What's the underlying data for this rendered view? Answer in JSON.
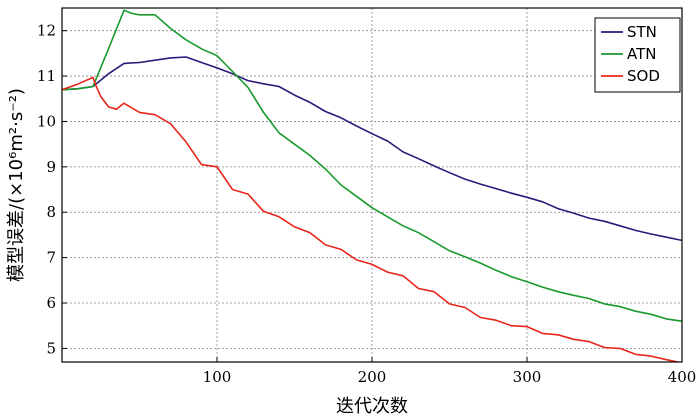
{
  "chart_data": {
    "type": "line",
    "xlabel": "迭代次数",
    "ylabel": "模型误差/(×10⁶m²·s⁻²)",
    "xlim": [
      0,
      400
    ],
    "ylim": [
      4.7,
      12.5
    ],
    "xticks": [
      100,
      200,
      300,
      400
    ],
    "yticks": [
      5,
      6,
      7,
      8,
      9,
      10,
      11,
      12
    ],
    "grid": true,
    "legend_position": "top-right",
    "series": [
      {
        "name": "STN",
        "color": "#2c1a7a",
        "x": [
          0,
          10,
          20,
          30,
          40,
          50,
          60,
          70,
          80,
          90,
          100,
          110,
          120,
          130,
          140,
          150,
          160,
          170,
          180,
          190,
          200,
          210,
          220,
          230,
          240,
          250,
          260,
          270,
          280,
          290,
          300,
          310,
          320,
          330,
          340,
          350,
          360,
          370,
          380,
          390,
          400
        ],
        "y": [
          10.7,
          10.72,
          10.77,
          11.05,
          11.28,
          11.3,
          11.35,
          11.4,
          11.42,
          11.3,
          11.18,
          11.05,
          10.9,
          10.83,
          10.77,
          10.58,
          10.42,
          10.22,
          10.08,
          9.9,
          9.73,
          9.57,
          9.33,
          9.18,
          9.02,
          8.87,
          8.73,
          8.62,
          8.52,
          8.42,
          8.33,
          8.23,
          8.08,
          7.98,
          7.87,
          7.8,
          7.7,
          7.6,
          7.52,
          7.45,
          7.38
        ]
      },
      {
        "name": "ATN",
        "color": "#1a9a2e",
        "x": [
          0,
          10,
          20,
          30,
          40,
          45,
          50,
          60,
          70,
          80,
          90,
          100,
          110,
          120,
          130,
          140,
          150,
          160,
          170,
          180,
          190,
          200,
          210,
          220,
          230,
          240,
          250,
          260,
          270,
          280,
          290,
          300,
          310,
          320,
          330,
          340,
          350,
          360,
          370,
          380,
          390,
          400
        ],
        "y": [
          10.7,
          10.72,
          10.77,
          11.6,
          12.45,
          12.38,
          12.35,
          12.35,
          12.05,
          11.8,
          11.6,
          11.45,
          11.1,
          10.75,
          10.2,
          9.75,
          9.5,
          9.25,
          8.95,
          8.6,
          8.35,
          8.1,
          7.9,
          7.7,
          7.55,
          7.35,
          7.15,
          7.02,
          6.88,
          6.72,
          6.58,
          6.47,
          6.35,
          6.25,
          6.17,
          6.1,
          5.98,
          5.92,
          5.82,
          5.75,
          5.65,
          5.6
        ]
      },
      {
        "name": "SOD",
        "color": "#e8261a",
        "x": [
          0,
          10,
          20,
          22,
          25,
          30,
          35,
          40,
          45,
          50,
          60,
          70,
          80,
          90,
          100,
          110,
          120,
          130,
          140,
          150,
          160,
          170,
          180,
          190,
          200,
          210,
          220,
          230,
          240,
          250,
          260,
          270,
          280,
          290,
          300,
          310,
          320,
          330,
          340,
          350,
          360,
          370,
          380,
          390,
          400
        ],
        "y": [
          10.7,
          10.82,
          10.97,
          10.78,
          10.55,
          10.32,
          10.27,
          10.4,
          10.3,
          10.2,
          10.15,
          9.95,
          9.55,
          9.05,
          9.0,
          8.5,
          8.4,
          8.02,
          7.9,
          7.68,
          7.55,
          7.28,
          7.18,
          6.95,
          6.85,
          6.68,
          6.6,
          6.32,
          6.25,
          5.98,
          5.9,
          5.68,
          5.62,
          5.5,
          5.48,
          5.33,
          5.3,
          5.2,
          5.15,
          5.02,
          5.0,
          4.87,
          4.83,
          4.75,
          4.68
        ]
      }
    ]
  }
}
